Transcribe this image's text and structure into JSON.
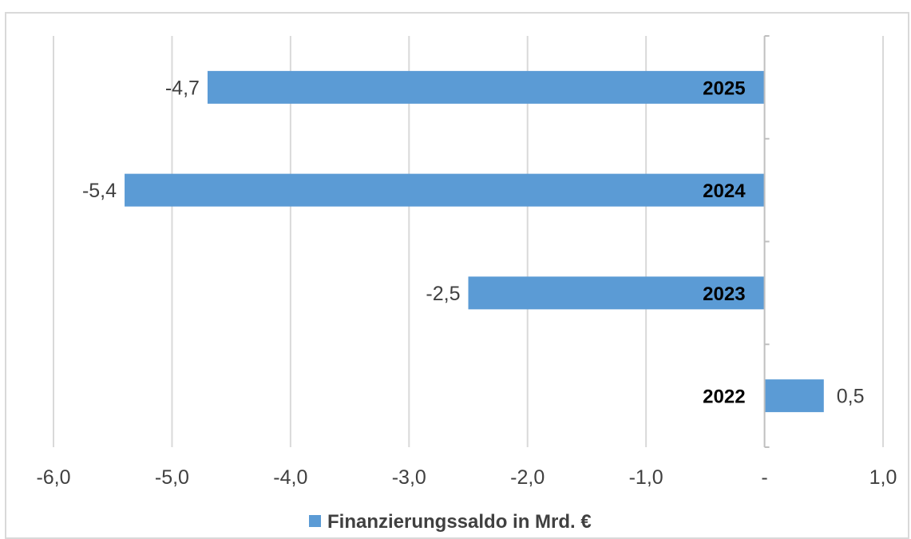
{
  "colors": {
    "bar": "#5b9bd5",
    "grid": "#d9d9d9",
    "axis": "#bfbfbf",
    "text": "#404040",
    "category_text": "#000000"
  },
  "chart_data": {
    "type": "bar",
    "orientation": "horizontal",
    "categories": [
      "2025",
      "2024",
      "2023",
      "2022"
    ],
    "series": [
      {
        "name": "Finanzierungssaldo  in Mrd. €",
        "values": [
          -4.7,
          -5.4,
          -2.5,
          0.5
        ],
        "labels": [
          "-4,7",
          "-5,4",
          "-2,5",
          "0,5"
        ]
      }
    ],
    "xlim": [
      -6,
      1
    ],
    "x_ticks": [
      -6,
      -5,
      -4,
      -3,
      -2,
      -1,
      0,
      1
    ],
    "x_tick_labels": [
      "-6,0",
      "-5,0",
      "-4,0",
      "-3,0",
      "-2,0",
      "-1,0",
      "-",
      "1,0"
    ],
    "grid": true,
    "legend_position": "bottom"
  }
}
